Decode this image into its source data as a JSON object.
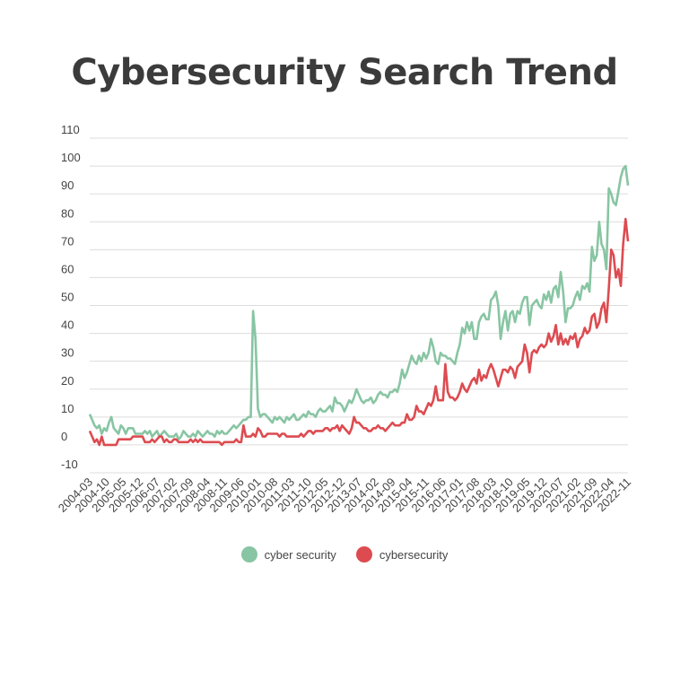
{
  "chart_data": {
    "type": "line",
    "title": "Cybersecurity Search Trend",
    "xlabel": "",
    "ylabel": "",
    "ylim": [
      -10,
      110
    ],
    "yticks": [
      -10,
      0,
      10,
      20,
      30,
      40,
      50,
      60,
      70,
      80,
      90,
      100,
      110
    ],
    "grid": true,
    "legend_position": "bottom",
    "x_start": "2004-03",
    "x_end": "2022-11",
    "x_tick_every_months": 7,
    "series": [
      {
        "name": "cyber security",
        "color": "#88c5a3",
        "values": [
          11,
          9,
          7,
          6,
          7,
          4,
          6,
          5,
          8,
          10,
          6,
          5,
          4,
          7,
          6,
          4,
          6,
          6,
          6,
          4,
          4,
          4,
          4,
          5,
          4,
          5,
          3,
          4,
          5,
          3,
          4,
          5,
          4,
          3,
          3,
          3,
          4,
          2,
          3,
          5,
          4,
          3,
          3,
          4,
          3,
          5,
          4,
          3,
          4,
          5,
          4,
          4,
          3,
          5,
          4,
          5,
          4,
          4,
          5,
          6,
          7,
          6,
          7,
          8,
          9,
          9,
          10,
          10,
          48,
          38,
          13,
          10,
          11,
          11,
          10,
          9,
          8,
          10,
          9,
          10,
          9,
          8,
          10,
          9,
          10,
          11,
          9,
          9,
          10,
          11,
          10,
          12,
          11,
          11,
          10,
          12,
          13,
          12,
          12,
          13,
          14,
          12,
          17,
          15,
          15,
          14,
          12,
          14,
          16,
          15,
          17,
          20,
          18,
          16,
          15,
          16,
          16,
          17,
          15,
          16,
          18,
          19,
          18,
          18,
          17,
          19,
          19,
          20,
          19,
          22,
          27,
          24,
          26,
          29,
          32,
          30,
          29,
          32,
          30,
          33,
          31,
          33,
          38,
          35,
          30,
          29,
          33,
          32,
          32,
          31,
          31,
          30,
          29,
          33,
          36,
          42,
          40,
          44,
          41,
          44,
          38,
          38,
          44,
          46,
          47,
          45,
          45,
          52,
          53,
          55,
          50,
          38,
          44,
          48,
          41,
          47,
          48,
          44,
          48,
          47,
          51,
          53,
          53,
          43,
          50,
          51,
          52,
          50,
          49,
          54,
          52,
          55,
          51,
          56,
          57,
          53,
          62,
          55,
          44,
          49,
          49,
          50,
          53,
          55,
          52,
          57,
          56,
          58,
          55,
          71,
          66,
          68,
          80,
          72,
          70,
          63,
          92,
          90,
          87,
          86,
          91,
          96,
          99,
          100,
          93
        ]
      },
      {
        "name": "cybersecurity",
        "color": "#dd4b50",
        "values": [
          5,
          3,
          1,
          2,
          0,
          3,
          0,
          0,
          0,
          0,
          0,
          0,
          2,
          2,
          2,
          2,
          2,
          2,
          3,
          3,
          3,
          3,
          3,
          1,
          1,
          1,
          2,
          1,
          2,
          3,
          3,
          1,
          2,
          1,
          1,
          2,
          2,
          1,
          1,
          1,
          1,
          1,
          2,
          1,
          2,
          1,
          2,
          1,
          1,
          1,
          1,
          1,
          1,
          1,
          1,
          0,
          1,
          1,
          1,
          1,
          1,
          2,
          1,
          1,
          7,
          3,
          3,
          3,
          4,
          3,
          6,
          5,
          3,
          3,
          4,
          4,
          4,
          4,
          4,
          3,
          4,
          4,
          3,
          3,
          3,
          3,
          3,
          3,
          4,
          3,
          4,
          5,
          5,
          4,
          5,
          5,
          5,
          5,
          6,
          6,
          5,
          6,
          6,
          7,
          5,
          7,
          6,
          5,
          4,
          6,
          10,
          8,
          8,
          7,
          6,
          6,
          5,
          5,
          6,
          6,
          7,
          6,
          6,
          5,
          6,
          7,
          8,
          7,
          7,
          7,
          8,
          8,
          11,
          9,
          9,
          10,
          14,
          12,
          12,
          11,
          13,
          15,
          14,
          16,
          21,
          16,
          16,
          16,
          29,
          19,
          17,
          17,
          16,
          17,
          19,
          22,
          20,
          19,
          21,
          23,
          24,
          22,
          27,
          23,
          25,
          24,
          27,
          29,
          27,
          24,
          21,
          24,
          27,
          27,
          26,
          28,
          27,
          24,
          28,
          29,
          30,
          36,
          33,
          26,
          33,
          34,
          33,
          35,
          36,
          35,
          36,
          40,
          37,
          39,
          43,
          36,
          40,
          36,
          38,
          36,
          39,
          38,
          40,
          35,
          38,
          39,
          42,
          40,
          41,
          46,
          47,
          42,
          44,
          49,
          51,
          44,
          56,
          70,
          68,
          60,
          63,
          57,
          72,
          81,
          73
        ]
      }
    ]
  }
}
